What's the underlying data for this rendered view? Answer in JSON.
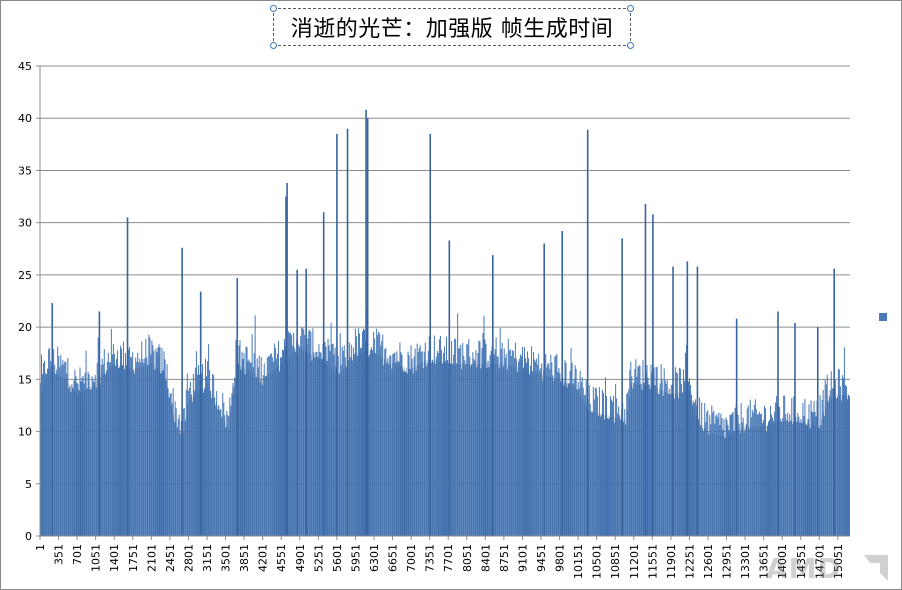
{
  "chart_data": {
    "type": "bar",
    "title": "消逝的光芒：加强版 帧生成时间",
    "xlabel": "",
    "ylabel": "",
    "ylim": [
      0,
      45
    ],
    "yticks": [
      "0",
      "5",
      "10",
      "15",
      "20",
      "25",
      "30",
      "35",
      "40",
      "45"
    ],
    "xlim": [
      1,
      15280
    ],
    "xticks": [
      "1",
      "351",
      "701",
      "1051",
      "1401",
      "1751",
      "2101",
      "2451",
      "2801",
      "3151",
      "3501",
      "3851",
      "4201",
      "4551",
      "4901",
      "5251",
      "5601",
      "5951",
      "6301",
      "6651",
      "7001",
      "7351",
      "7701",
      "8051",
      "8401",
      "8751",
      "9101",
      "9451",
      "9801",
      "10151",
      "10501",
      "10851",
      "11201",
      "11551",
      "11901",
      "12251",
      "12601",
      "12951",
      "13301",
      "13651",
      "14001",
      "14351",
      "14701",
      "15051"
    ],
    "grid": true,
    "legend": "right",
    "series": [
      {
        "color": "#4a7ab8",
        "profile": [
          [
            1,
            14
          ],
          [
            150,
            17
          ],
          [
            500,
            16
          ],
          [
            700,
            14.5
          ],
          [
            1000,
            15.5
          ],
          [
            1400,
            17.5
          ],
          [
            1750,
            17
          ],
          [
            2100,
            17.5
          ],
          [
            2350,
            16.5
          ],
          [
            2550,
            12
          ],
          [
            2700,
            10.5
          ],
          [
            2800,
            14
          ],
          [
            3150,
            15.5
          ],
          [
            3400,
            13
          ],
          [
            3550,
            11
          ],
          [
            3700,
            17.5
          ],
          [
            4200,
            16
          ],
          [
            4551,
            17.5
          ],
          [
            4900,
            19
          ],
          [
            5251,
            18
          ],
          [
            5650,
            16.5
          ],
          [
            5950,
            18.5
          ],
          [
            6300,
            18.5
          ],
          [
            6650,
            17.5
          ],
          [
            7001,
            17
          ],
          [
            7350,
            18
          ],
          [
            7700,
            17.5
          ],
          [
            8051,
            17.5
          ],
          [
            8401,
            17.5
          ],
          [
            8751,
            17.5
          ],
          [
            9101,
            17
          ],
          [
            9451,
            16.5
          ],
          [
            9800,
            16
          ],
          [
            10150,
            15
          ],
          [
            10350,
            13
          ],
          [
            10800,
            12.5
          ],
          [
            11050,
            12
          ],
          [
            11150,
            15.5
          ],
          [
            11551,
            15.5
          ],
          [
            11901,
            14.5
          ],
          [
            12251,
            15
          ],
          [
            12400,
            12
          ],
          [
            12600,
            11
          ],
          [
            12951,
            10.5
          ],
          [
            13301,
            11.5
          ],
          [
            13651,
            11.5
          ],
          [
            14001,
            12
          ],
          [
            14351,
            12
          ],
          [
            14701,
            11.5
          ],
          [
            14850,
            14
          ],
          [
            15051,
            14.5
          ],
          [
            15280,
            14.5
          ]
        ],
        "spikes": [
          [
            230,
            22.3
          ],
          [
            1120,
            21.5
          ],
          [
            1650,
            30.5
          ],
          [
            2680,
            27.6
          ],
          [
            3030,
            23.4
          ],
          [
            3720,
            24.7
          ],
          [
            4660,
            33.8
          ],
          [
            4640,
            32.5
          ],
          [
            4850,
            25.5
          ],
          [
            5020,
            25.6
          ],
          [
            5350,
            31
          ],
          [
            5600,
            38.5
          ],
          [
            5800,
            39
          ],
          [
            6150,
            40.8
          ],
          [
            6180,
            40
          ],
          [
            7360,
            38.5
          ],
          [
            7720,
            28.3
          ],
          [
            8540,
            26.9
          ],
          [
            9510,
            28
          ],
          [
            9850,
            29.2
          ],
          [
            10330,
            38.9
          ],
          [
            10980,
            28.5
          ],
          [
            11420,
            31.8
          ],
          [
            11560,
            30.8
          ],
          [
            11940,
            25.8
          ],
          [
            12210,
            26.3
          ],
          [
            12400,
            25.8
          ],
          [
            13140,
            20.8
          ],
          [
            13920,
            21.5
          ],
          [
            14240,
            20.4
          ],
          [
            14670,
            20
          ],
          [
            14980,
            25.6
          ]
        ]
      }
    ],
    "watermark": "AMD"
  }
}
